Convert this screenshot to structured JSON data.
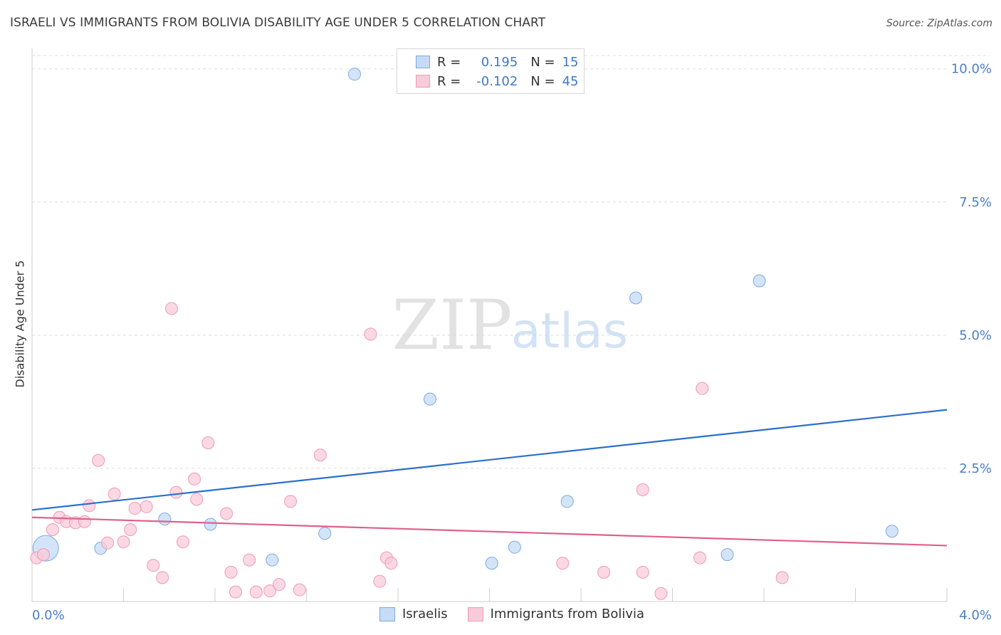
{
  "chart_data": {
    "type": "scatter",
    "title": "ISRAELI VS IMMIGRANTS FROM BOLIVIA DISABILITY AGE UNDER 5 CORRELATION CHART",
    "source": "Source: ZipAtlas.com",
    "ylabel": "Disability Age Under 5",
    "xlabel": "",
    "xlim": [
      0,
      4.0
    ],
    "ylim": [
      0,
      10.25
    ],
    "x_tick_labels": [
      "0.0%",
      "4.0%"
    ],
    "y_ticks": [
      {
        "value": 2.5,
        "label": "2.5%"
      },
      {
        "value": 5.0,
        "label": "5.0%"
      },
      {
        "value": 7.5,
        "label": "7.5%"
      },
      {
        "value": 10.0,
        "label": "10.0%"
      }
    ],
    "watermark": {
      "zip": "ZIP",
      "atlas": "atlas"
    },
    "legend_stats": [
      {
        "r_label": "R =",
        "r_value": "0.195",
        "n_label": "N =",
        "n_value": "15"
      },
      {
        "r_label": "R =",
        "r_value": "-0.102",
        "n_label": "N =",
        "n_value": "45"
      }
    ],
    "series": [
      {
        "name": "Israelis",
        "color": "#7aaae3",
        "fill": "#c5dbf6",
        "line_color": "#2b6fcc",
        "trend": {
          "x0": 0.0,
          "y0": 1.72,
          "x1": 4.0,
          "y1": 3.6
        },
        "points": [
          {
            "x": 0.06,
            "y": 1.0,
            "size": "large"
          },
          {
            "x": 0.3,
            "y": 1.0
          },
          {
            "x": 0.58,
            "y": 1.55
          },
          {
            "x": 0.78,
            "y": 1.45
          },
          {
            "x": 1.05,
            "y": 0.78
          },
          {
            "x": 1.28,
            "y": 1.28
          },
          {
            "x": 1.41,
            "y": 9.9
          },
          {
            "x": 1.74,
            "y": 3.8
          },
          {
            "x": 2.01,
            "y": 0.72
          },
          {
            "x": 2.11,
            "y": 1.02
          },
          {
            "x": 2.34,
            "y": 1.88
          },
          {
            "x": 2.64,
            "y": 5.7
          },
          {
            "x": 3.04,
            "y": 0.88
          },
          {
            "x": 3.18,
            "y": 6.02
          },
          {
            "x": 3.76,
            "y": 1.32
          }
        ]
      },
      {
        "name": "Immigrants from Bolivia",
        "color": "#ee9ab6",
        "fill": "#f9cbda",
        "line_color": "#e0608b",
        "trend": {
          "x0": 0.0,
          "y0": 1.58,
          "x1": 4.0,
          "y1": 1.05
        },
        "points": [
          {
            "x": 0.02,
            "y": 0.82
          },
          {
            "x": 0.05,
            "y": 0.88
          },
          {
            "x": 0.09,
            "y": 1.35
          },
          {
            "x": 0.12,
            "y": 1.58
          },
          {
            "x": 0.15,
            "y": 1.5
          },
          {
            "x": 0.19,
            "y": 1.48
          },
          {
            "x": 0.23,
            "y": 1.5
          },
          {
            "x": 0.25,
            "y": 1.8
          },
          {
            "x": 0.29,
            "y": 2.65
          },
          {
            "x": 0.33,
            "y": 1.1
          },
          {
            "x": 0.36,
            "y": 2.02
          },
          {
            "x": 0.4,
            "y": 1.12
          },
          {
            "x": 0.43,
            "y": 1.35
          },
          {
            "x": 0.45,
            "y": 1.75
          },
          {
            "x": 0.5,
            "y": 1.78
          },
          {
            "x": 0.53,
            "y": 0.68
          },
          {
            "x": 0.57,
            "y": 0.45
          },
          {
            "x": 0.61,
            "y": 5.5
          },
          {
            "x": 0.63,
            "y": 2.05
          },
          {
            "x": 0.66,
            "y": 1.12
          },
          {
            "x": 0.71,
            "y": 2.3
          },
          {
            "x": 0.72,
            "y": 1.92
          },
          {
            "x": 0.77,
            "y": 2.98
          },
          {
            "x": 0.85,
            "y": 1.65
          },
          {
            "x": 0.87,
            "y": 0.55
          },
          {
            "x": 0.89,
            "y": 0.18
          },
          {
            "x": 0.95,
            "y": 0.78
          },
          {
            "x": 0.98,
            "y": 0.18
          },
          {
            "x": 1.04,
            "y": 0.2
          },
          {
            "x": 1.08,
            "y": 0.32
          },
          {
            "x": 1.13,
            "y": 1.88
          },
          {
            "x": 1.17,
            "y": 0.22
          },
          {
            "x": 1.26,
            "y": 2.75
          },
          {
            "x": 1.48,
            "y": 5.02
          },
          {
            "x": 1.52,
            "y": 0.38
          },
          {
            "x": 1.55,
            "y": 0.82
          },
          {
            "x": 1.57,
            "y": 0.72
          },
          {
            "x": 2.32,
            "y": 0.72
          },
          {
            "x": 2.5,
            "y": 0.55
          },
          {
            "x": 2.67,
            "y": 2.1
          },
          {
            "x": 2.67,
            "y": 0.55
          },
          {
            "x": 2.75,
            "y": 0.15
          },
          {
            "x": 2.92,
            "y": 0.82
          },
          {
            "x": 2.93,
            "y": 4.0
          },
          {
            "x": 3.28,
            "y": 0.45
          }
        ]
      }
    ]
  }
}
